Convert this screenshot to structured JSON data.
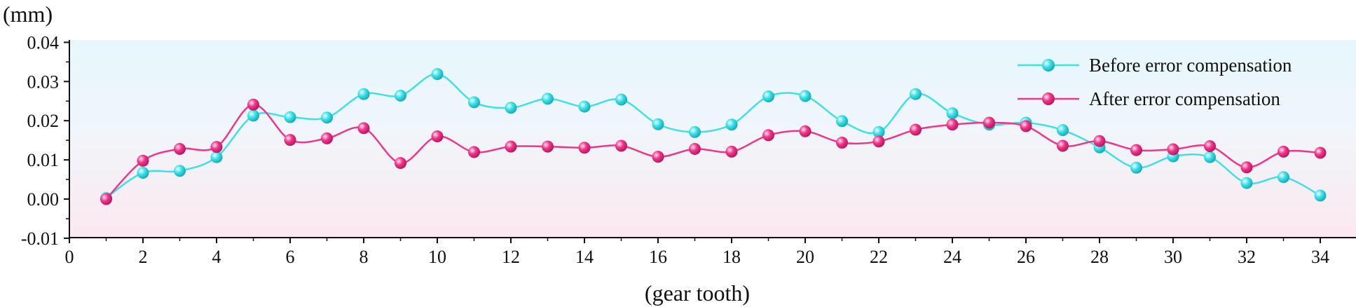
{
  "chart_data": {
    "type": "line",
    "xlabel": "(gear tooth)",
    "ylabel": "(mm)",
    "xlim": [
      0,
      35
    ],
    "ylim": [
      -0.01,
      0.04
    ],
    "xticks": [
      "0",
      "2",
      "4",
      "6",
      "8",
      "10",
      "12",
      "14",
      "16",
      "18",
      "20",
      "22",
      "24",
      "26",
      "28",
      "30",
      "32",
      "34"
    ],
    "yticks": [
      "-0.01",
      "0.00",
      "0.01",
      "0.02",
      "0.03",
      "0.04"
    ],
    "legend_position": "top-right",
    "background": "gradient light-blue (top) to light-pink (bottom)",
    "x": [
      1,
      2,
      3,
      4,
      5,
      6,
      7,
      8,
      9,
      10,
      11,
      12,
      13,
      14,
      15,
      16,
      17,
      18,
      19,
      20,
      21,
      22,
      23,
      24,
      25,
      26,
      27,
      28,
      29,
      30,
      31,
      32,
      33,
      34
    ],
    "series": [
      {
        "name": "Before error compensation",
        "color": "#3fe0e8",
        "values": [
          0.0003,
          0.0067,
          0.0072,
          0.0107,
          0.0213,
          0.0209,
          0.0208,
          0.0268,
          0.0264,
          0.0319,
          0.0247,
          0.0233,
          0.0256,
          0.0236,
          0.0254,
          0.0191,
          0.0171,
          0.019,
          0.0262,
          0.0263,
          0.0199,
          0.0171,
          0.0268,
          0.0219,
          0.019,
          0.0195,
          0.0176,
          0.0132,
          0.008,
          0.0109,
          0.0107,
          0.0041,
          0.0056,
          0.0009
        ]
      },
      {
        "name": "After error compensation",
        "color": "#f0368c",
        "values": [
          0.0,
          0.0098,
          0.0128,
          0.0133,
          0.0241,
          0.0151,
          0.0155,
          0.0181,
          0.0092,
          0.016,
          0.012,
          0.0134,
          0.0134,
          0.0131,
          0.0136,
          0.0108,
          0.0128,
          0.0121,
          0.0163,
          0.0173,
          0.0144,
          0.0147,
          0.0177,
          0.019,
          0.0195,
          0.0186,
          0.0136,
          0.0148,
          0.0125,
          0.0127,
          0.0135,
          0.0081,
          0.0121,
          0.0118
        ]
      }
    ]
  }
}
